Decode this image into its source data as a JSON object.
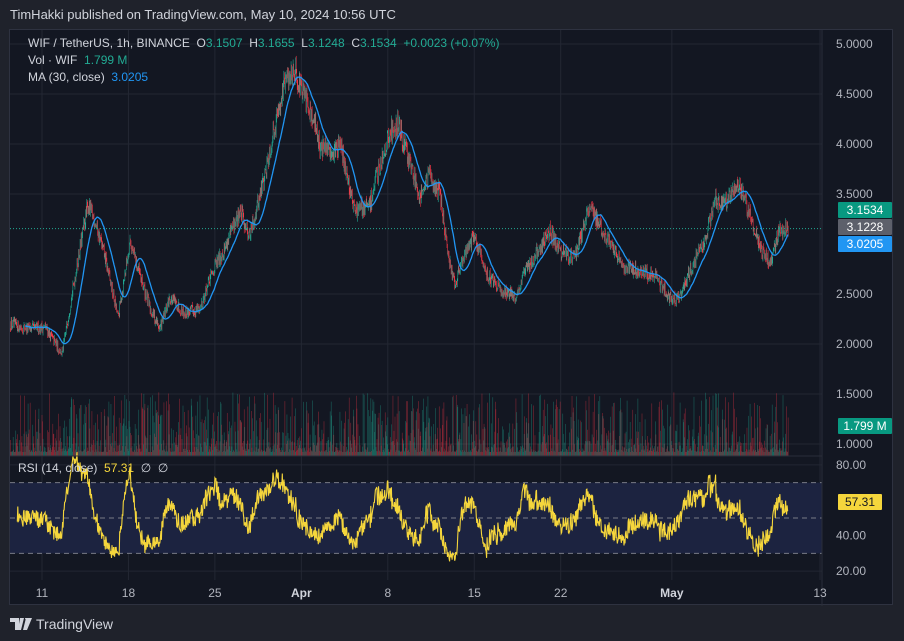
{
  "header": {
    "text": "TimHakki published on TradingView.com, May 10, 2024 10:56 UTC"
  },
  "legend": {
    "symbol": "WIF / TetherUS, 1h, BINANCE",
    "o_label": "O",
    "o": "3.1507",
    "h_label": "H",
    "h": "3.1655",
    "l_label": "L",
    "l": "3.1248",
    "c_label": "C",
    "c": "3.1534",
    "change": "+0.0023 (+0.07%)",
    "vol_label": "Vol · WIF",
    "vol": "1.799 M",
    "ma_label": "MA (30, close)",
    "ma": "3.0205",
    "rsi_label": "RSI (14, close)",
    "rsi": "57.31",
    "rsi_extra1": "∅",
    "rsi_extra2": "∅"
  },
  "price_tags": {
    "last": "3.1534",
    "prev": "3.1228",
    "ma": "3.0205",
    "vol": "1.799 M",
    "rsi": "57.31"
  },
  "colors": {
    "up": "#22ab94",
    "down": "#f23645",
    "ma": "#2196f3",
    "rsi": "#f5d63c",
    "rsi_band": "#1c2340",
    "bg": "#131722",
    "grid": "#232733"
  },
  "footer": {
    "brand": "TradingView"
  },
  "chart_data": {
    "type": "candlestick",
    "interval": "1h",
    "price_axis": {
      "ticks": [
        "5.0000",
        "4.5000",
        "4.0000",
        "3.5000",
        "2.5000",
        "2.0000",
        "1.5000",
        "1.0000"
      ],
      "range": [
        0.88,
        5.14
      ]
    },
    "rsi_axis": {
      "ticks": [
        "80.00",
        "40.00",
        "20.00"
      ],
      "bands": [
        70,
        50,
        30
      ],
      "range": [
        15,
        85
      ]
    },
    "x_ticks": [
      {
        "label": "11",
        "date": "2024-03-11"
      },
      {
        "label": "18",
        "date": "2024-03-18"
      },
      {
        "label": "25",
        "date": "2024-03-25"
      },
      {
        "label": "Apr",
        "date": "2024-04-01"
      },
      {
        "label": "8",
        "date": "2024-04-08"
      },
      {
        "label": "15",
        "date": "2024-04-15"
      },
      {
        "label": "22",
        "date": "2024-04-22"
      },
      {
        "label": "May",
        "date": "2024-05-01"
      },
      {
        "label": "13",
        "date": "2024-05-13"
      }
    ],
    "approx_close_path": [
      [
        "2024-03-08T10",
        2.2
      ],
      [
        "2024-03-10T01",
        2.15
      ],
      [
        "2024-03-11T06",
        2.17
      ],
      [
        "2024-03-12T15",
        1.9
      ],
      [
        "2024-03-13T16",
        2.67
      ],
      [
        "2024-03-14T17",
        3.39
      ],
      [
        "2024-03-15T07",
        3.23
      ],
      [
        "2024-03-16T02",
        2.87
      ],
      [
        "2024-03-17T04",
        2.26
      ],
      [
        "2024-03-18T03",
        3.03
      ],
      [
        "2024-03-18T23",
        2.67
      ],
      [
        "2024-03-19T18",
        2.36
      ],
      [
        "2024-03-20T13",
        2.15
      ],
      [
        "2024-03-21T09",
        2.46
      ],
      [
        "2024-03-22T14",
        2.31
      ],
      [
        "2024-03-23T19",
        2.36
      ],
      [
        "2024-03-25T00",
        2.77
      ],
      [
        "2024-03-25T20",
        2.97
      ],
      [
        "2024-03-27T01",
        3.33
      ],
      [
        "2024-03-27T20",
        3.08
      ],
      [
        "2024-03-29T01",
        3.69
      ],
      [
        "2024-03-29T21",
        4.2
      ],
      [
        "2024-03-30T16",
        4.62
      ],
      [
        "2024-03-31T12",
        4.77
      ],
      [
        "2024-03-31T21",
        4.57
      ],
      [
        "2024-04-01T17",
        4.36
      ],
      [
        "2024-04-02T12",
        4.0
      ],
      [
        "2024-04-03T08",
        3.9
      ],
      [
        "2024-04-04T03",
        4.0
      ],
      [
        "2024-04-05T08",
        3.33
      ],
      [
        "2024-04-06T13",
        3.39
      ],
      [
        "2024-04-07T09",
        3.8
      ],
      [
        "2024-04-08T04",
        4.11
      ],
      [
        "2024-04-08T20",
        4.2
      ],
      [
        "2024-04-09T19",
        3.8
      ],
      [
        "2024-04-10T15",
        3.49
      ],
      [
        "2024-04-11T10",
        3.69
      ],
      [
        "2024-04-12T06",
        3.49
      ],
      [
        "2024-04-12T21",
        2.87
      ],
      [
        "2024-04-13T11",
        2.62
      ],
      [
        "2024-04-14T06",
        2.92
      ],
      [
        "2024-04-15T01",
        3.08
      ],
      [
        "2024-04-15T21",
        2.72
      ],
      [
        "2024-04-17T02",
        2.56
      ],
      [
        "2024-04-18T07",
        2.46
      ],
      [
        "2024-04-19T03",
        2.72
      ],
      [
        "2024-04-20T08",
        2.97
      ],
      [
        "2024-04-21T03",
        3.13
      ],
      [
        "2024-04-21T23",
        2.92
      ],
      [
        "2024-04-23T04",
        2.87
      ],
      [
        "2024-04-24T09",
        3.39
      ],
      [
        "2024-04-25T04",
        3.18
      ],
      [
        "2024-04-26T04",
        2.97
      ],
      [
        "2024-04-27T05",
        2.77
      ],
      [
        "2024-04-28T10",
        2.72
      ],
      [
        "2024-04-29T15",
        2.67
      ],
      [
        "2024-04-30T20",
        2.46
      ],
      [
        "2024-05-01T16",
        2.46
      ],
      [
        "2024-05-02T11",
        2.72
      ],
      [
        "2024-05-03T16",
        3.03
      ],
      [
        "2024-05-04T12",
        3.44
      ],
      [
        "2024-05-05T07",
        3.39
      ],
      [
        "2024-05-06T12",
        3.59
      ],
      [
        "2024-05-07T08",
        3.28
      ],
      [
        "2024-05-08T03",
        2.97
      ],
      [
        "2024-05-08T23",
        2.82
      ],
      [
        "2024-05-09T18",
        3.13
      ],
      [
        "2024-05-10T10",
        3.1534
      ]
    ]
  }
}
